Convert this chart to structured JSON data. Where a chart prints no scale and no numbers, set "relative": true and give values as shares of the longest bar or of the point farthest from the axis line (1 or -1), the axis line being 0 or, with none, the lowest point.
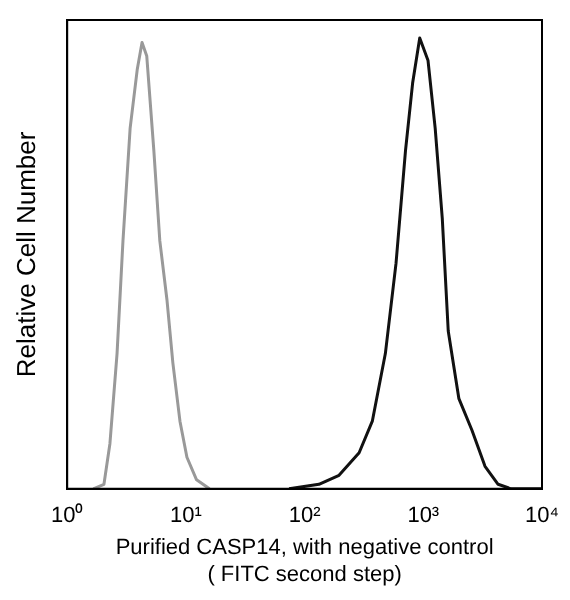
{
  "chart_data": {
    "type": "line",
    "ylabel": "Relative Cell Number",
    "xlabel": "Purified CASP14, with negative control\n( FITC second step)",
    "log": "x",
    "relative": true,
    "grid": false,
    "legend": false,
    "marker": "none",
    "xlim": [
      1,
      10000
    ],
    "xticks": [
      {
        "value": 1,
        "label": "10⁰"
      },
      {
        "value": 10,
        "label": "10¹"
      },
      {
        "value": 100,
        "label": "10²"
      },
      {
        "value": 1000,
        "label": "10³"
      },
      {
        "value": 10000,
        "label": "10⁴"
      }
    ],
    "series": [
      {
        "color": "#999999",
        "x": [
          1.66,
          2.04,
          2.29,
          2.63,
          2.95,
          3.39,
          3.89,
          4.27,
          4.68,
          5.37,
          6.03,
          6.92,
          7.76,
          8.91,
          10.2,
          12.3,
          15.8
        ],
        "values": [
          0,
          0.01,
          0.1,
          0.3,
          0.55,
          0.8,
          0.93,
          0.99,
          0.96,
          0.75,
          0.55,
          0.42,
          0.28,
          0.15,
          0.07,
          0.02,
          0
        ]
      },
      {
        "color": "#111111",
        "x": [
          74,
          132,
          195,
          288,
          372,
          479,
          589,
          708,
          813,
          933,
          1096,
          1259,
          1445,
          1622,
          1995,
          2570,
          3311,
          4266,
          5495,
          10000
        ],
        "values": [
          0,
          0.01,
          0.03,
          0.08,
          0.15,
          0.3,
          0.5,
          0.75,
          0.9,
          1,
          0.95,
          0.8,
          0.6,
          0.35,
          0.2,
          0.13,
          0.05,
          0.01,
          0,
          0
        ]
      }
    ]
  }
}
